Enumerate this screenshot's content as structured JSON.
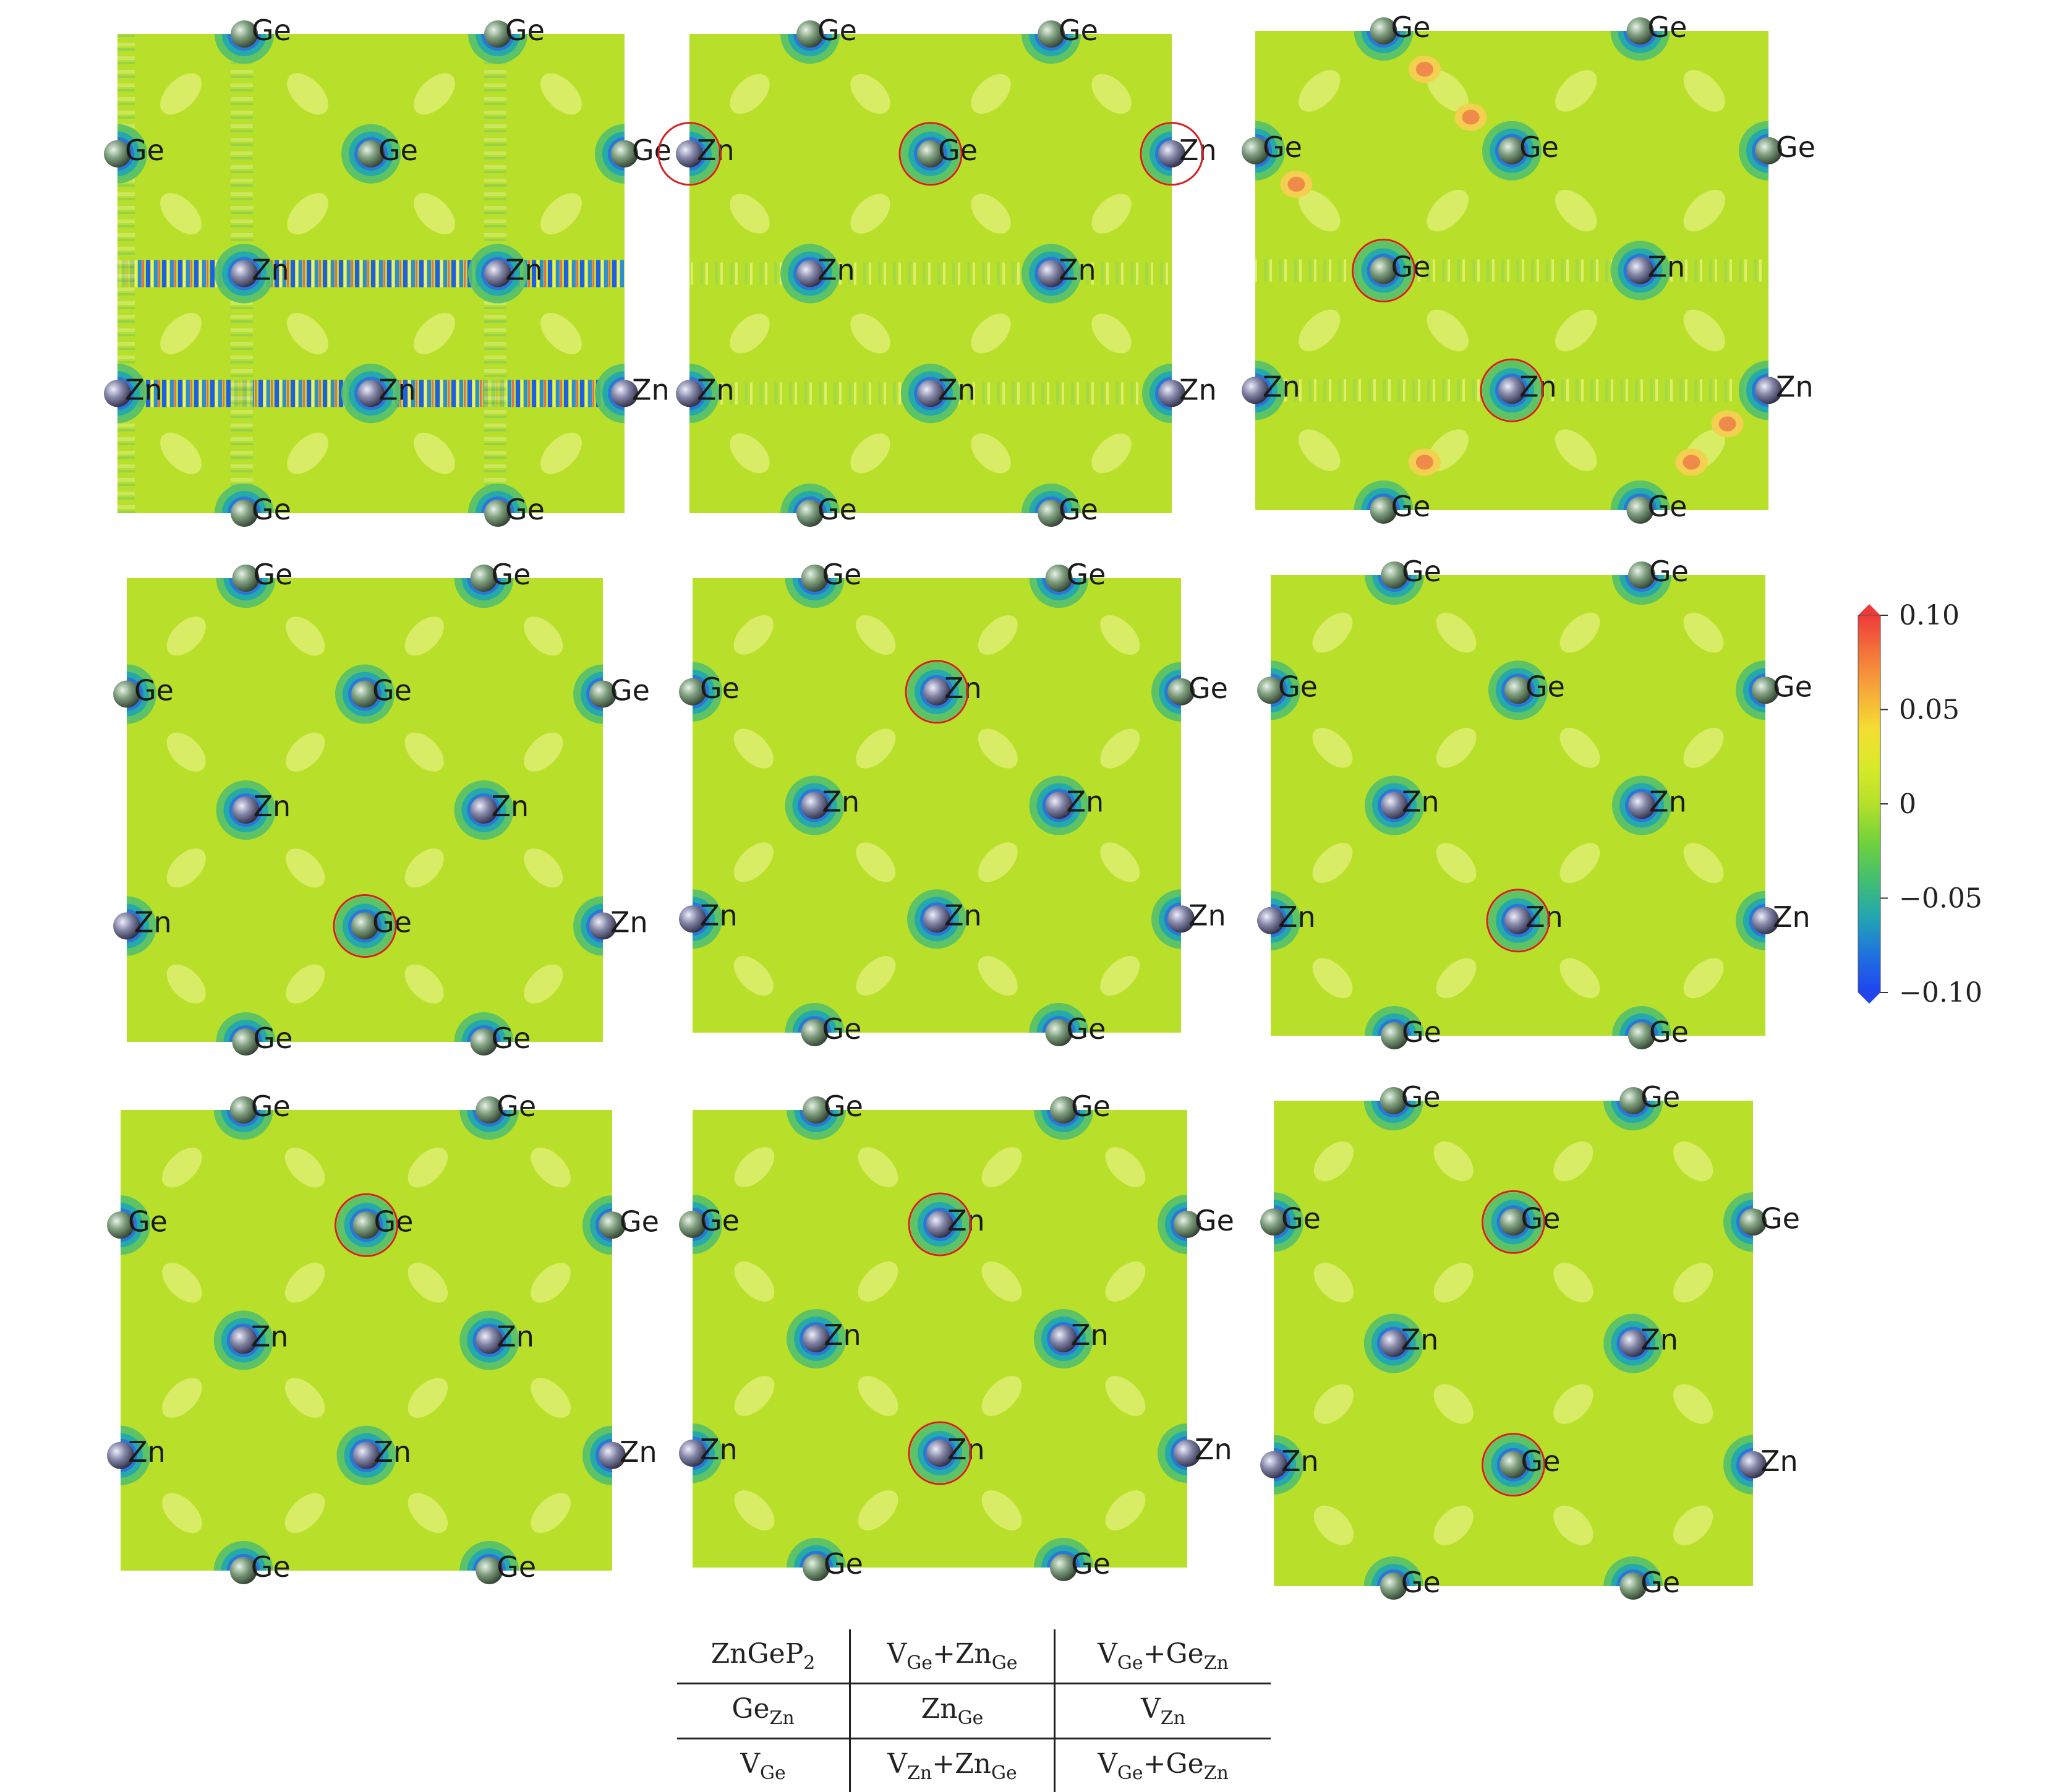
{
  "colors": {
    "background": "#b8e02a",
    "light_lobe": "#e4f07a",
    "ring_outer": "#53c06a",
    "ring_mid": "#1fa7b0",
    "ring_inner": "#2b6ee0",
    "stripe_blue": "#1f5ee6",
    "stripe_red": "#f06a50",
    "hotspot": "#f08a4a",
    "defect_circle": "#d42020",
    "ge_atom": "#7e9e7e",
    "zn_atom": "#8587a8"
  },
  "colorbar": {
    "ticks": [
      "0.10",
      "0.05",
      "0",
      "−0.05",
      "−0.10"
    ],
    "stops": [
      "#ef3a3a",
      "#f3753a",
      "#f6a93a",
      "#f4dd32",
      "#d9ea2a",
      "#b5e02a",
      "#72d23a",
      "#43bf70",
      "#22a6b0",
      "#1f72df",
      "#1f44f0"
    ]
  },
  "atom_labels": {
    "ge": "Ge",
    "zn": "Zn"
  },
  "panels": [
    {
      "name": "ZnGeP2",
      "stripes": "strong",
      "defects": []
    },
    {
      "name": "VGe+ZnGe",
      "stripes": "faint",
      "defects": [
        {
          "site": "Zn",
          "row": 1,
          "col": 0
        },
        {
          "site": "Zn",
          "row": 1,
          "col": 2
        },
        {
          "site": "vacancy",
          "row": 1,
          "col": 1
        }
      ]
    },
    {
      "name": "VGe+GeZn",
      "stripes": "faint",
      "hotspots": true,
      "defects": [
        {
          "site": "Ge",
          "row": 2,
          "col": 0
        },
        {
          "site": "vacancy",
          "row": 3,
          "col": 1
        }
      ]
    },
    {
      "name": "GeZn",
      "stripes": "none",
      "defects": [
        {
          "site": "Ge",
          "row": 3,
          "col": 1
        }
      ]
    },
    {
      "name": "ZnGe",
      "stripes": "none",
      "defects": [
        {
          "site": "Zn",
          "row": 1,
          "col": 1
        }
      ]
    },
    {
      "name": "VZn",
      "stripes": "none",
      "defects": [
        {
          "site": "vacancy",
          "row": 3,
          "col": 1
        }
      ]
    },
    {
      "name": "VGe",
      "stripes": "none",
      "defects": [
        {
          "site": "vacancy",
          "row": 1,
          "col": 1
        }
      ]
    },
    {
      "name": "VZn+ZnGe",
      "stripes": "none",
      "defects": [
        {
          "site": "Zn",
          "row": 1,
          "col": 1
        },
        {
          "site": "vacancy",
          "row": 3,
          "col": 1
        }
      ]
    },
    {
      "name": "VGe+GeZn",
      "stripes": "none",
      "defects": [
        {
          "site": "vacancy",
          "row": 1,
          "col": 1
        },
        {
          "site": "Ge",
          "row": 3,
          "col": 1
        }
      ]
    }
  ],
  "legend_table": {
    "rows": [
      [
        {
          "base": "ZnGeP",
          "sub": "2"
        },
        {
          "base": "V",
          "sub": "Ge",
          "op": "+",
          "base2": "Zn",
          "sub2": "Ge"
        },
        {
          "base": "V",
          "sub": "Ge",
          "op": "+",
          "base2": "Ge",
          "sub2": "Zn"
        }
      ],
      [
        {
          "base": "Ge",
          "sub": "Zn"
        },
        {
          "base": "Zn",
          "sub": "Ge"
        },
        {
          "base": "V",
          "sub": "Zn"
        }
      ],
      [
        {
          "base": "V",
          "sub": "Ge"
        },
        {
          "base": "V",
          "sub": "Zn",
          "op": "+",
          "base2": "Zn",
          "sub2": "Ge"
        },
        {
          "base": "V",
          "sub": "Ge",
          "op": "+",
          "base2": "Ge",
          "sub2": "Zn"
        }
      ]
    ]
  }
}
